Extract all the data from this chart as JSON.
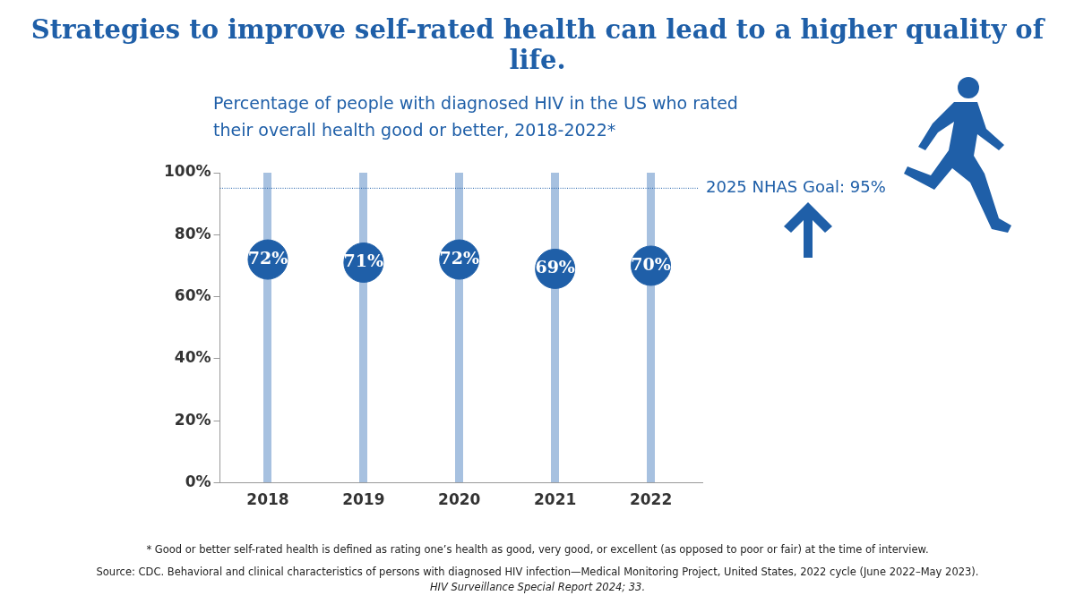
{
  "chart_data": {
    "type": "scatter",
    "title": "Strategies to improve self-rated health can lead to a higher quality of life.",
    "subtitle": "Percentage of people with diagnosed HIV in the US who rated their overall health good or better, 2018-2022*",
    "categories": [
      "2018",
      "2019",
      "2020",
      "2021",
      "2022"
    ],
    "values": [
      72,
      71,
      72,
      69,
      70
    ],
    "value_labels": [
      "72%",
      "71%",
      "72%",
      "69%",
      "70%"
    ],
    "color": "#1f5fa8",
    "marker": "circle",
    "grid": "x",
    "legend": false,
    "ylim": [
      0,
      100
    ],
    "yticks": [
      {
        "value": 0,
        "label": "0%"
      },
      {
        "value": 20,
        "label": "20%"
      },
      {
        "value": 40,
        "label": "40%"
      },
      {
        "value": 60,
        "label": "60%"
      },
      {
        "value": 80,
        "label": "80%"
      },
      {
        "value": 100,
        "label": "100%"
      }
    ],
    "ref_lines": [
      {
        "axis": "y",
        "value": 95,
        "label": "2025 NHAS Goal: 95%",
        "line_style": "dotted",
        "color": "#1f5fa8"
      }
    ],
    "annotations": [
      "* Good or better self-rated health is defined as rating one’s health as good, very good, or excellent (as opposed to poor or fair) at the time of interview.",
      "Source: CDC. Behavioral and clinical characteristics of persons with diagnosed HIV infection—Medical Monitoring Project, United States, 2022 cycle (June 2022–May 2023).",
      "HIV Surveillance Special Report 2024; 33."
    ]
  }
}
